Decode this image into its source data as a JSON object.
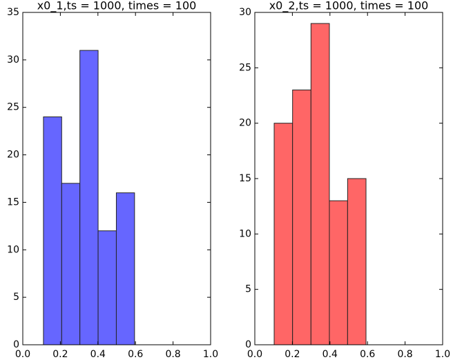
{
  "chart_data": [
    {
      "type": "histogram",
      "title": "x0_1,ts = 1000, times = 100",
      "bins": [
        0.11,
        0.207,
        0.304,
        0.401,
        0.498,
        0.595
      ],
      "values": [
        24,
        17,
        31,
        12,
        16
      ],
      "color": "#6666ff",
      "xlim": [
        0,
        1
      ],
      "ylim": [
        0,
        35
      ],
      "xticks": [
        {
          "value": 0,
          "label": "0.0"
        },
        {
          "value": 0.2,
          "label": "0.2"
        },
        {
          "value": 0.4,
          "label": "0.4"
        },
        {
          "value": 0.6,
          "label": "0.6"
        },
        {
          "value": 0.8,
          "label": "0.8"
        },
        {
          "value": 1,
          "label": "1.0"
        }
      ],
      "yticks": [
        0,
        5,
        10,
        15,
        20,
        25,
        30,
        35
      ]
    },
    {
      "type": "histogram",
      "title": "x0_2,ts = 1000, times = 100",
      "bins": [
        0.103,
        0.201,
        0.299,
        0.397,
        0.494,
        0.592
      ],
      "values": [
        20,
        23,
        29,
        13,
        15
      ],
      "color": "#ff6666",
      "xlim": [
        0,
        1
      ],
      "ylim": [
        0,
        30
      ],
      "xticks": [
        {
          "value": 0,
          "label": "0.0"
        },
        {
          "value": 0.2,
          "label": "0.2"
        },
        {
          "value": 0.4,
          "label": "0.4"
        },
        {
          "value": 0.6,
          "label": "0.6"
        },
        {
          "value": 0.8,
          "label": "0.8"
        },
        {
          "value": 1,
          "label": "1.0"
        }
      ],
      "yticks": [
        0,
        5,
        10,
        15,
        20,
        25,
        30
      ]
    }
  ]
}
